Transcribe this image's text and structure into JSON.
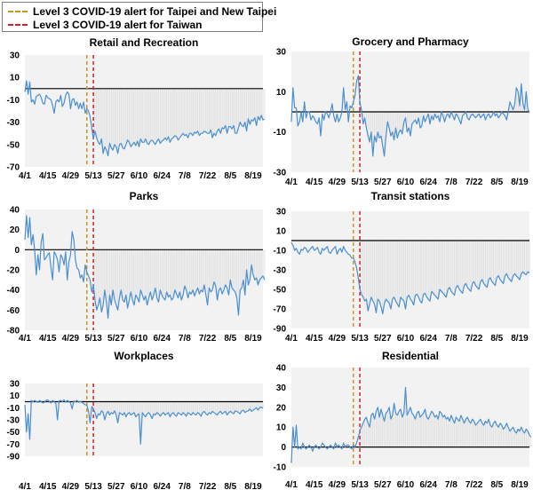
{
  "legend": {
    "items": [
      {
        "label": "Level 3 COVID-19 alert for Taipei and New Taipei",
        "color": "#c8961e"
      },
      {
        "label": "Level 3 COVID-19 alert for Taiwan",
        "color": "#d4202a"
      }
    ]
  },
  "colors": {
    "line": "#4a8fd0",
    "fill": "#f2f2f2",
    "hatch": "#dcdcdc",
    "zero": "#000000",
    "vline1": "#c8961e",
    "vline2": "#d4202a"
  },
  "chart_data": [
    {
      "type": "line",
      "title": "Retail and Recreation",
      "x_tick_labels": [
        "4/1",
        "4/15",
        "4/29",
        "5/13",
        "5/27",
        "6/10",
        "6/24",
        "7/8",
        "7/22",
        "8/5",
        "8/19"
      ],
      "x_tick_days": [
        0,
        14,
        28,
        42,
        56,
        70,
        84,
        98,
        112,
        126,
        140
      ],
      "yticks": [
        30,
        10,
        -10,
        -30,
        -50,
        -70
      ],
      "ylim": [
        -70,
        30
      ],
      "num_days": 147,
      "alert_days": [
        38,
        42
      ],
      "values": [
        -3,
        7,
        -5,
        6,
        -12,
        -10,
        -14,
        -7,
        -6,
        -5,
        -8,
        -13,
        -14,
        -6,
        -8,
        -9,
        -10,
        -15,
        -22,
        -12,
        -10,
        -12,
        -6,
        -16,
        -13,
        -6,
        -3,
        -5,
        -18,
        -10,
        -9,
        -15,
        -12,
        -18,
        -13,
        -18,
        -12,
        -22,
        -18,
        -20,
        -25,
        -35,
        -45,
        -38,
        -44,
        -48,
        -50,
        -45,
        -58,
        -52,
        -55,
        -60,
        -49,
        -53,
        -55,
        -50,
        -52,
        -58,
        -50,
        -49,
        -53,
        -54,
        -50,
        -46,
        -48,
        -52,
        -50,
        -48,
        -51,
        -47,
        -52,
        -45,
        -48,
        -48,
        -45,
        -49,
        -50,
        -47,
        -46,
        -48,
        -50,
        -47,
        -45,
        -49,
        -47,
        -46,
        -44,
        -46,
        -43,
        -48,
        -45,
        -44,
        -42,
        -43,
        -46,
        -44,
        -42,
        -40,
        -42,
        -41,
        -44,
        -40,
        -40,
        -42,
        -39,
        -40,
        -38,
        -42,
        -40,
        -40,
        -38,
        -39,
        -40,
        -40,
        -37,
        -44,
        -40,
        -42,
        -38,
        -36,
        -40,
        -35,
        -36,
        -33,
        -40,
        -34,
        -34,
        -36,
        -33,
        -40,
        -40,
        -35,
        -30,
        -33,
        -34,
        -30,
        -38,
        -27,
        -32,
        -28,
        -29,
        -26,
        -33,
        -25,
        -28,
        -24,
        -28,
        -27
      ]
    },
    {
      "type": "line",
      "title": "Grocery and Pharmacy",
      "x_tick_labels": [
        "4/1",
        "4/15",
        "4/29",
        "5/13",
        "5/27",
        "6/10",
        "6/24",
        "7/8",
        "7/22",
        "8/5",
        "8/19"
      ],
      "x_tick_days": [
        0,
        14,
        28,
        42,
        56,
        70,
        84,
        98,
        112,
        126,
        140
      ],
      "yticks": [
        30,
        10,
        -10,
        -30
      ],
      "ylim": [
        -30,
        30
      ],
      "num_days": 147,
      "alert_days": [
        38,
        42
      ],
      "values": [
        -5,
        12,
        2,
        2,
        -7,
        -5,
        0,
        -5,
        5,
        -3,
        0,
        0,
        -4,
        -2,
        -3,
        -5,
        -6,
        -3,
        -12,
        -1,
        -4,
        0,
        -1,
        -3,
        0,
        4,
        -2,
        -5,
        -1,
        -5,
        -3,
        0,
        12,
        1,
        5,
        -5,
        3,
        2,
        5,
        8,
        15,
        18,
        5,
        1,
        -6,
        -3,
        -8,
        -12,
        -15,
        -10,
        -22,
        -12,
        -15,
        -10,
        -13,
        -12,
        -17,
        -22,
        -12,
        -5,
        -8,
        -12,
        -10,
        -14,
        -8,
        -13,
        -10,
        -9,
        -11,
        -5,
        -3,
        -10,
        -8,
        -12,
        -6,
        -5,
        -4,
        -6,
        -3,
        -8,
        -7,
        -2,
        -5,
        -3,
        -1,
        -6,
        -2,
        -4,
        -1,
        -3,
        -2,
        -5,
        0,
        -2,
        -5,
        -2,
        -1,
        -3,
        0,
        -2,
        -4,
        -1,
        -2,
        -4,
        -6,
        -2,
        -1,
        0,
        -3,
        -4,
        -2,
        -1,
        -2,
        -3,
        -2,
        -1,
        -3,
        -2,
        -1,
        -4,
        -2,
        -1,
        -3,
        -2,
        0,
        -2,
        -1,
        -3,
        -2,
        0,
        -1,
        -2,
        -4,
        0,
        5,
        3,
        1,
        4,
        12,
        10,
        3,
        14,
        4,
        1,
        10,
        1,
        0
      ]
    },
    {
      "type": "line",
      "title": "Parks",
      "x_tick_labels": [
        "4/1",
        "4/15",
        "4/29",
        "5/13",
        "5/27",
        "6/10",
        "6/24",
        "7/8",
        "7/22",
        "8/5",
        "8/19"
      ],
      "x_tick_days": [
        0,
        14,
        28,
        42,
        56,
        70,
        84,
        98,
        112,
        126,
        140
      ],
      "yticks": [
        40,
        20,
        0,
        -20,
        -40,
        -60,
        -80
      ],
      "ylim": [
        -80,
        40
      ],
      "num_days": 147,
      "alert_days": [
        38,
        42
      ],
      "values": [
        10,
        34,
        12,
        32,
        5,
        15,
        0,
        -25,
        -5,
        -20,
        8,
        16,
        -10,
        -8,
        -5,
        -3,
        -18,
        -30,
        -2,
        -5,
        -10,
        -22,
        -5,
        -8,
        -15,
        -2,
        -30,
        -12,
        -5,
        18,
        10,
        -10,
        -18,
        -20,
        -28,
        -25,
        -32,
        -15,
        -22,
        -26,
        -30,
        -42,
        -35,
        -50,
        -60,
        -55,
        -48,
        -62,
        -55,
        -40,
        -52,
        -68,
        -45,
        -55,
        -40,
        -50,
        -55,
        -60,
        -48,
        -40,
        -50,
        -52,
        -45,
        -58,
        -50,
        -42,
        -50,
        -55,
        -45,
        -48,
        -52,
        -40,
        -45,
        -50,
        -46,
        -55,
        -48,
        -42,
        -50,
        -45,
        -38,
        -48,
        -52,
        -40,
        -45,
        -48,
        -50,
        -42,
        -47,
        -45,
        -50,
        -48,
        -40,
        -44,
        -48,
        -42,
        -50,
        -45,
        -36,
        -40,
        -48,
        -42,
        -44,
        -40,
        -46,
        -42,
        -38,
        -44,
        -40,
        -42,
        -35,
        -45,
        -55,
        -38,
        -42,
        -40,
        -32,
        -36,
        -50,
        -40,
        -38,
        -44,
        -40,
        -35,
        -38,
        -45,
        -30,
        -38,
        -40,
        -42,
        -48,
        -65,
        -40,
        -38,
        -30,
        -45,
        -20,
        -35,
        -30,
        -15,
        -25,
        -30,
        -28,
        -35,
        -30,
        -28,
        -26,
        -30
      ]
    },
    {
      "type": "line",
      "title": "Transit stations",
      "x_tick_labels": [
        "4/1",
        "4/15",
        "4/29",
        "5/13",
        "5/27",
        "6/10",
        "6/24",
        "7/8",
        "7/22",
        "8/5",
        "8/19"
      ],
      "x_tick_days": [
        0,
        14,
        28,
        42,
        56,
        70,
        84,
        98,
        112,
        126,
        140
      ],
      "yticks": [
        30,
        10,
        -10,
        -30,
        -50,
        -70,
        -90
      ],
      "ylim": [
        -90,
        30
      ],
      "num_days": 147,
      "alert_days": [
        38,
        42
      ],
      "values": [
        -2,
        -5,
        -10,
        -8,
        -12,
        -14,
        -9,
        -10,
        -7,
        -8,
        -12,
        -10,
        -8,
        -6,
        -10,
        -9,
        -7,
        -12,
        -14,
        -8,
        -10,
        -8,
        -6,
        -12,
        -13,
        -10,
        -8,
        -6,
        -14,
        -10,
        -8,
        -12,
        -6,
        -10,
        -12,
        -14,
        -15,
        -18,
        -18,
        -22,
        -28,
        -38,
        -50,
        -55,
        -58,
        -62,
        -60,
        -72,
        -65,
        -58,
        -62,
        -65,
        -74,
        -60,
        -62,
        -68,
        -75,
        -65,
        -60,
        -62,
        -64,
        -70,
        -60,
        -58,
        -62,
        -65,
        -68,
        -58,
        -60,
        -62,
        -70,
        -58,
        -56,
        -60,
        -62,
        -66,
        -56,
        -55,
        -58,
        -62,
        -64,
        -55,
        -54,
        -58,
        -60,
        -62,
        -52,
        -54,
        -56,
        -58,
        -60,
        -50,
        -52,
        -54,
        -56,
        -58,
        -50,
        -48,
        -52,
        -54,
        -56,
        -48,
        -46,
        -50,
        -52,
        -54,
        -46,
        -44,
        -48,
        -50,
        -52,
        -44,
        -42,
        -46,
        -48,
        -50,
        -42,
        -40,
        -44,
        -46,
        -48,
        -40,
        -38,
        -42,
        -44,
        -46,
        -38,
        -36,
        -40,
        -42,
        -44,
        -36,
        -34,
        -38,
        -40,
        -42,
        -36,
        -34,
        -36,
        -38,
        -40,
        -34,
        -32,
        -34,
        -35,
        -32,
        -33
      ]
    },
    {
      "type": "line",
      "title": "Workplaces",
      "x_tick_labels": [
        "4/1",
        "4/15",
        "4/29",
        "5/13",
        "5/27",
        "6/10",
        "6/24",
        "7/8",
        "7/22",
        "8/5",
        "8/19"
      ],
      "x_tick_days": [
        0,
        14,
        28,
        42,
        56,
        70,
        84,
        98,
        112,
        126,
        140
      ],
      "yticks": [
        30,
        10,
        -10,
        -30,
        -50,
        -70,
        -90
      ],
      "ylim": [
        -90,
        30
      ],
      "num_days": 147,
      "alert_days": [
        38,
        42
      ],
      "values": [
        -5,
        -50,
        -20,
        -62,
        2,
        0,
        2,
        0,
        -1,
        2,
        0,
        -2,
        -1,
        2,
        3,
        0,
        -2,
        2,
        0,
        -3,
        -30,
        1,
        2,
        0,
        3,
        -1,
        2,
        0,
        -2,
        -12,
        1,
        0,
        2,
        -1,
        0,
        -1,
        -3,
        -5,
        -6,
        -15,
        -35,
        -8,
        -12,
        -18,
        -28,
        -20,
        -22,
        -15,
        -18,
        -30,
        -20,
        -16,
        -22,
        -18,
        -20,
        -15,
        -22,
        -35,
        -18,
        -20,
        -22,
        -18,
        -25,
        -20,
        -18,
        -22,
        -20,
        -18,
        -25,
        -22,
        -20,
        -70,
        -18,
        -22,
        -25,
        -20,
        -18,
        -22,
        -28,
        -20,
        -22,
        -18,
        -20,
        -24,
        -20,
        -18,
        -22,
        -20,
        -18,
        -25,
        -20,
        -18,
        -22,
        -24,
        -18,
        -20,
        -22,
        -18,
        -20,
        -24,
        -18,
        -20,
        -22,
        -18,
        -20,
        -22,
        -18,
        -20,
        -24,
        -18,
        -16,
        -20,
        -22,
        -18,
        -20,
        -16,
        -18,
        -20,
        -22,
        -18,
        -16,
        -20,
        -18,
        -16,
        -22,
        -18,
        -16,
        -18,
        -20,
        -15,
        -16,
        -18,
        -20,
        -15,
        -14,
        -18,
        -16,
        -15,
        -12,
        -16,
        -14,
        -12,
        -10,
        -14,
        -10,
        -9,
        -11
      ]
    },
    {
      "type": "line",
      "title": "Residential",
      "x_tick_labels": [
        "4/1",
        "4/15",
        "4/29",
        "5/13",
        "5/27",
        "6/10",
        "6/24",
        "7/8",
        "7/22",
        "8/5",
        "8/19"
      ],
      "x_tick_days": [
        0,
        14,
        28,
        42,
        56,
        70,
        84,
        98,
        112,
        126,
        140
      ],
      "yticks": [
        40,
        30,
        20,
        10,
        0,
        -10
      ],
      "ylim": [
        -10,
        40
      ],
      "num_days": 147,
      "alert_days": [
        38,
        42
      ],
      "values": [
        -8,
        10,
        0,
        11,
        -1,
        0,
        -1,
        2,
        0,
        -1,
        0,
        1,
        0,
        -2,
        0,
        1,
        0,
        -1,
        0,
        2,
        1,
        0,
        -1,
        0,
        1,
        0,
        -1,
        2,
        0,
        1,
        0,
        -1,
        2,
        0,
        1,
        1,
        0,
        -1,
        1,
        0,
        2,
        5,
        8,
        10,
        12,
        14,
        15,
        12,
        10,
        16,
        17,
        14,
        18,
        20,
        15,
        19,
        16,
        13,
        17,
        18,
        20,
        14,
        16,
        22,
        17,
        16,
        18,
        19,
        15,
        17,
        30,
        16,
        18,
        20,
        17,
        16,
        14,
        17,
        18,
        15,
        16,
        17,
        19,
        15,
        14,
        16,
        18,
        17,
        15,
        16,
        14,
        18,
        17,
        15,
        16,
        14,
        15,
        13,
        16,
        14,
        12,
        15,
        14,
        13,
        16,
        14,
        12,
        14,
        15,
        13,
        12,
        14,
        13,
        11,
        12,
        13,
        14,
        12,
        11,
        13,
        12,
        14,
        11,
        10,
        12,
        13,
        11,
        10,
        12,
        11,
        9,
        10,
        12,
        10,
        8,
        9,
        10,
        8,
        7,
        9,
        8,
        10,
        8,
        7,
        9,
        8,
        6,
        5
      ]
    }
  ]
}
